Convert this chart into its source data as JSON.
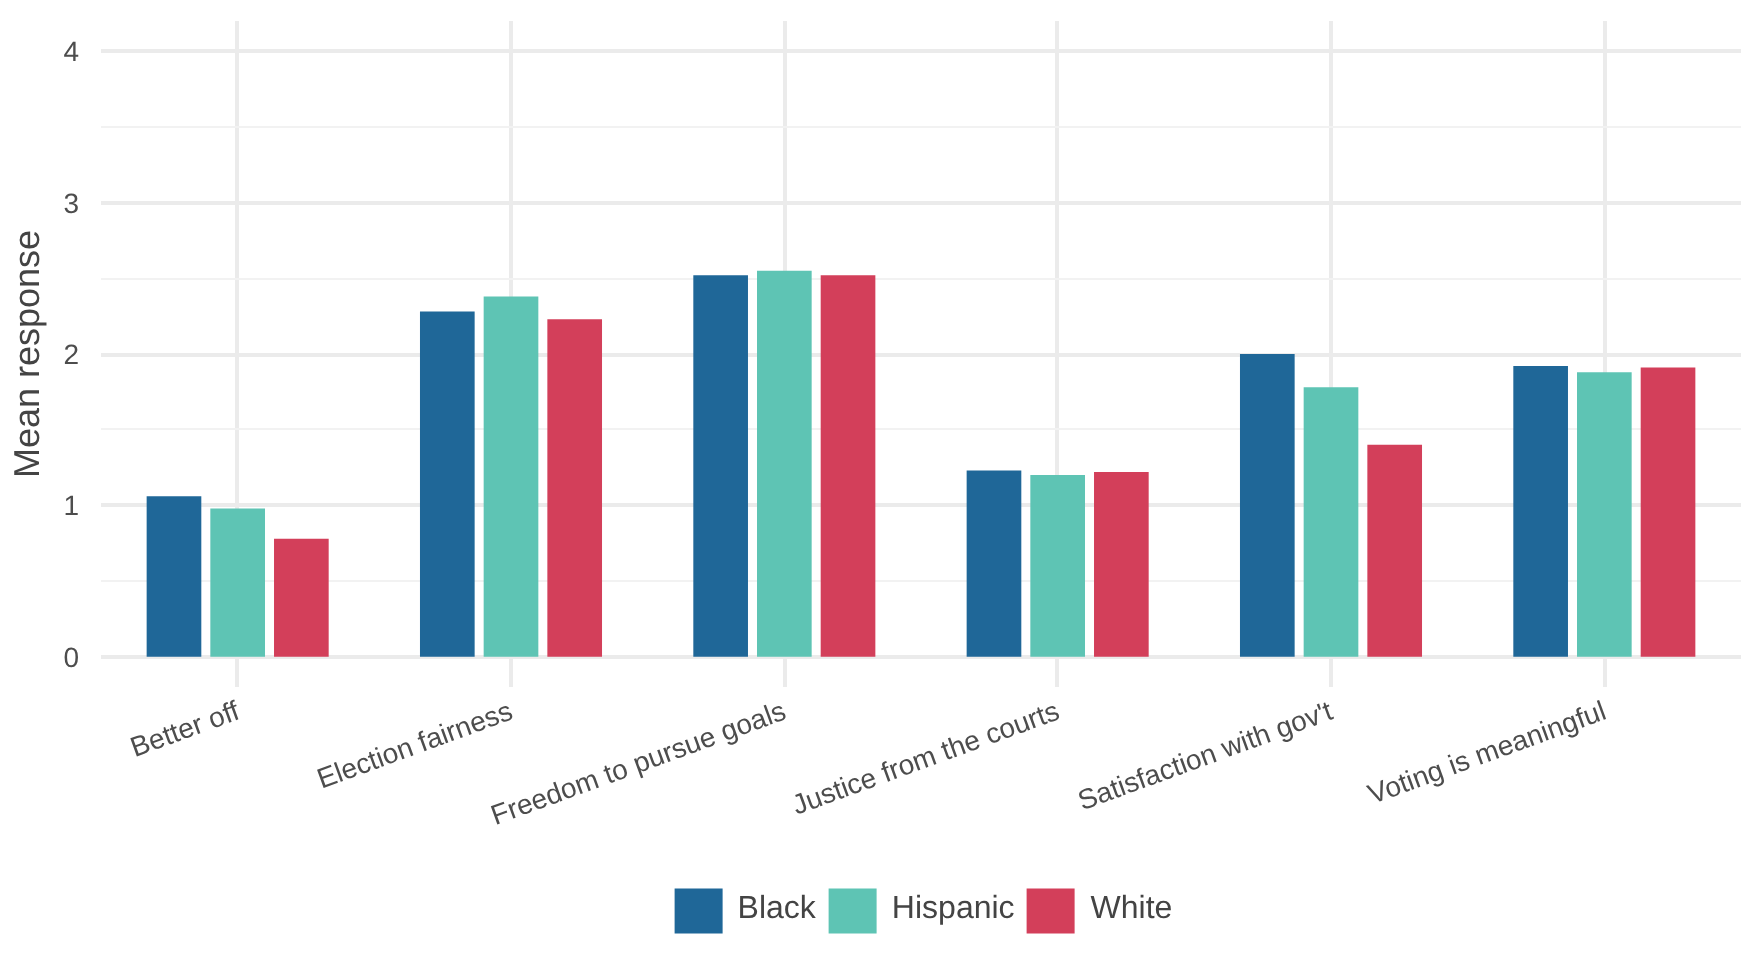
{
  "chart_data": {
    "type": "bar",
    "ylabel": "Mean response",
    "categories": [
      "Better off",
      "Election fairness",
      "Freedom to pursue goals",
      "Justice from the courts",
      "Satisfaction with gov't",
      "Voting is meaningful"
    ],
    "series": [
      {
        "name": "Black",
        "color": "#1f6798",
        "values": [
          1.06,
          2.28,
          2.52,
          1.23,
          2.0,
          1.92
        ]
      },
      {
        "name": "Hispanic",
        "color": "#5ec4b4",
        "values": [
          0.98,
          2.38,
          2.55,
          1.2,
          1.78,
          1.88
        ]
      },
      {
        "name": "White",
        "color": "#d33f5a",
        "values": [
          0.78,
          2.23,
          2.52,
          1.22,
          1.4,
          1.91
        ]
      }
    ],
    "ylim": [
      -0.2,
      4.2
    ],
    "yticks": [
      0,
      1,
      2,
      3,
      4
    ],
    "grid": true,
    "legend": "bottom"
  }
}
